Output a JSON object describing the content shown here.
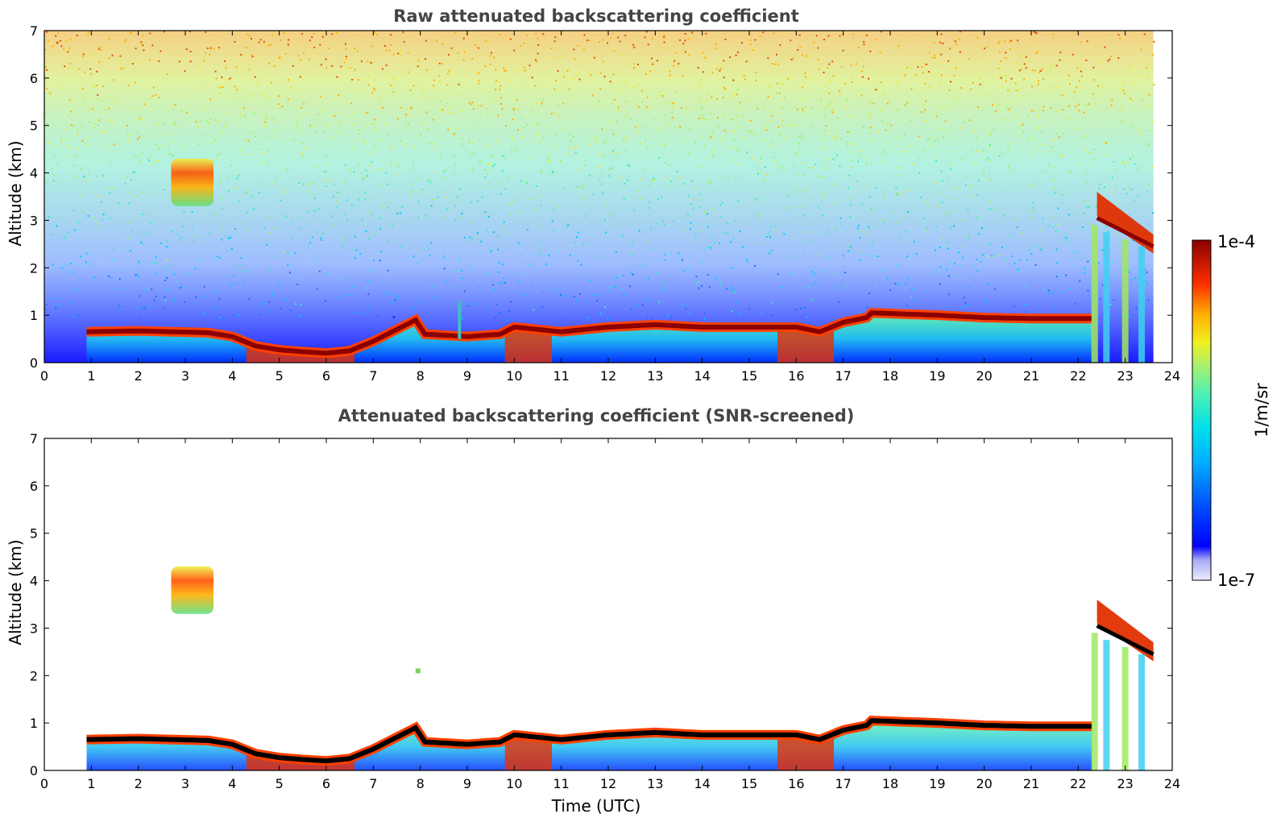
{
  "chart_data": [
    {
      "type": "heatmap",
      "title": "Raw attenuated backscattering coefficient",
      "xlabel": "",
      "ylabel": "Altitude (km)",
      "xlim": [
        0,
        24
      ],
      "ylim": [
        0,
        7
      ],
      "xticks": [
        "0",
        "1",
        "2",
        "3",
        "4",
        "5",
        "6",
        "7",
        "8",
        "9",
        "10",
        "11",
        "12",
        "13",
        "14",
        "15",
        "16",
        "17",
        "18",
        "19",
        "20",
        "21",
        "22",
        "23",
        "24"
      ],
      "yticks": [
        "0",
        "1",
        "2",
        "3",
        "4",
        "5",
        "6",
        "7"
      ],
      "cloud_base_km": [
        [
          0.9,
          0.6
        ],
        [
          2,
          0.62
        ],
        [
          3.5,
          0.58
        ],
        [
          4,
          0.5
        ],
        [
          4.5,
          0.3
        ],
        [
          5,
          0.22
        ],
        [
          5.5,
          0.18
        ],
        [
          6,
          0.15
        ],
        [
          6.5,
          0.2
        ],
        [
          7,
          0.4
        ],
        [
          7.5,
          0.65
        ],
        [
          7.9,
          0.85
        ],
        [
          8.1,
          0.55
        ],
        [
          9,
          0.5
        ],
        [
          9.7,
          0.55
        ],
        [
          10,
          0.7
        ],
        [
          11,
          0.6
        ],
        [
          12,
          0.7
        ],
        [
          13,
          0.75
        ],
        [
          14,
          0.7
        ],
        [
          15,
          0.7
        ],
        [
          16,
          0.7
        ],
        [
          16.5,
          0.6
        ],
        [
          17,
          0.8
        ],
        [
          17.5,
          0.9
        ],
        [
          17.6,
          1.0
        ],
        [
          19,
          0.95
        ],
        [
          20,
          0.9
        ],
        [
          21,
          0.88
        ],
        [
          22,
          0.88
        ],
        [
          22.3,
          0.88
        ]
      ],
      "features": [
        {
          "name": "cirrus",
          "t_range": [
            2.7,
            3.6
          ],
          "alt_range_km": [
            3.3,
            4.3
          ]
        },
        {
          "name": "high-cloud",
          "t_range": [
            22.4,
            23.6
          ],
          "alt_range_km": [
            2.4,
            3.8
          ]
        },
        {
          "name": "spike",
          "t_range": [
            8.8,
            8.85
          ],
          "alt_range_km": [
            0.5,
            1.3
          ]
        }
      ],
      "noise_level": "high"
    },
    {
      "type": "heatmap",
      "title": "Attenuated backscattering coefficient (SNR-screened)",
      "xlabel": "Time (UTC)",
      "ylabel": "Altitude (km)",
      "xlim": [
        0,
        24
      ],
      "ylim": [
        0,
        7
      ],
      "xticks": [
        "0",
        "1",
        "2",
        "3",
        "4",
        "5",
        "6",
        "7",
        "8",
        "9",
        "10",
        "11",
        "12",
        "13",
        "14",
        "15",
        "16",
        "17",
        "18",
        "19",
        "20",
        "21",
        "22",
        "23",
        "24"
      ],
      "yticks": [
        "0",
        "1",
        "2",
        "3",
        "4",
        "5",
        "6",
        "7"
      ],
      "cloud_base_km": [
        [
          0.9,
          0.6
        ],
        [
          2,
          0.62
        ],
        [
          3.5,
          0.58
        ],
        [
          4,
          0.5
        ],
        [
          4.5,
          0.3
        ],
        [
          5,
          0.22
        ],
        [
          5.5,
          0.18
        ],
        [
          6,
          0.15
        ],
        [
          6.5,
          0.2
        ],
        [
          7,
          0.4
        ],
        [
          7.5,
          0.65
        ],
        [
          7.9,
          0.85
        ],
        [
          8.1,
          0.55
        ],
        [
          9,
          0.5
        ],
        [
          9.7,
          0.55
        ],
        [
          10,
          0.7
        ],
        [
          11,
          0.6
        ],
        [
          12,
          0.7
        ],
        [
          13,
          0.75
        ],
        [
          14,
          0.7
        ],
        [
          15,
          0.7
        ],
        [
          16,
          0.7
        ],
        [
          16.5,
          0.6
        ],
        [
          17,
          0.8
        ],
        [
          17.5,
          0.9
        ],
        [
          17.6,
          1.0
        ],
        [
          19,
          0.95
        ],
        [
          20,
          0.9
        ],
        [
          21,
          0.88
        ],
        [
          22,
          0.88
        ],
        [
          22.3,
          0.88
        ]
      ],
      "features": [
        {
          "name": "cirrus",
          "t_range": [
            2.7,
            3.6
          ],
          "alt_range_km": [
            3.3,
            4.3
          ]
        },
        {
          "name": "high-cloud",
          "t_range": [
            22.4,
            23.6
          ],
          "alt_range_km": [
            2.4,
            3.8
          ]
        },
        {
          "name": "small-patch",
          "t_range": [
            7.9,
            8.0
          ],
          "alt_range_km": [
            2.05,
            2.15
          ]
        }
      ],
      "noise_level": "none"
    }
  ],
  "colorbar": {
    "max_label": "1e-4",
    "min_label": "1e-7",
    "unit_label": "1/m/sr",
    "colors": [
      "#ececff",
      "#c0c0f8",
      "#8c8cf2",
      "#0000ff",
      "#0050ff",
      "#00a0ff",
      "#00dcf0",
      "#40f0c0",
      "#8cf080",
      "#d8f040",
      "#ffe000",
      "#ff9000",
      "#ff3000",
      "#d00000",
      "#8b0000"
    ]
  }
}
